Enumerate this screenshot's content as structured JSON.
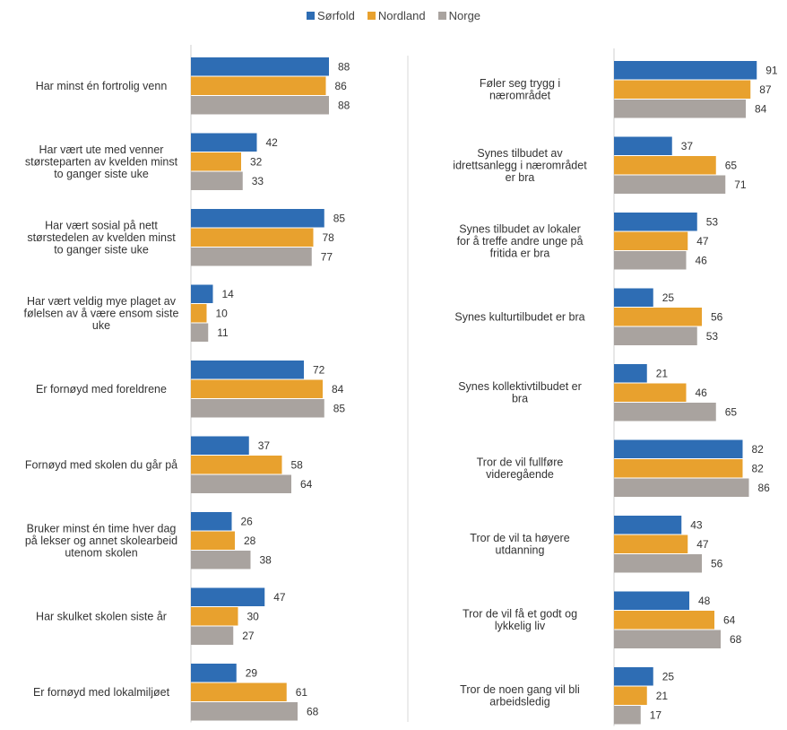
{
  "legend": {
    "items": [
      {
        "name": "Sørfold",
        "color": "#2e6db4"
      },
      {
        "name": "Nordland",
        "color": "#e8a12e"
      },
      {
        "name": "Norge",
        "color": "#a9a39f"
      }
    ]
  },
  "chart_data": [
    {
      "type": "bar",
      "orientation": "horizontal",
      "xlim": [
        0,
        100
      ],
      "series_names": [
        "Sørfold",
        "Nordland",
        "Norge"
      ],
      "categories": [
        {
          "label": "Har minst én fortrolig venn",
          "values": [
            88,
            86,
            88
          ]
        },
        {
          "label": "Har vært ute med venner størsteparten av kvelden minst to ganger siste uke",
          "values": [
            42,
            32,
            33
          ]
        },
        {
          "label": "Har vært sosial på nett størstedelen av kvelden minst to ganger siste uke",
          "values": [
            85,
            78,
            77
          ]
        },
        {
          "label": "Har vært veldig mye plaget av følelsen av å være ensom siste uke",
          "values": [
            14,
            10,
            11
          ]
        },
        {
          "label": "Er fornøyd med foreldrene",
          "values": [
            72,
            84,
            85
          ]
        },
        {
          "label": "Fornøyd med skolen du går på",
          "values": [
            37,
            58,
            64
          ]
        },
        {
          "label": "Bruker minst én time hver dag på lekser og annet skolearbeid utenom skolen",
          "values": [
            26,
            28,
            38
          ]
        },
        {
          "label": "Har skulket skolen siste år",
          "values": [
            47,
            30,
            27
          ]
        },
        {
          "label": "Er fornøyd med lokalmiljøet",
          "values": [
            29,
            61,
            68
          ]
        }
      ]
    },
    {
      "type": "bar",
      "orientation": "horizontal",
      "xlim": [
        0,
        100
      ],
      "series_names": [
        "Sørfold",
        "Nordland",
        "Norge"
      ],
      "categories": [
        {
          "label": "Føler seg trygg i nærområdet",
          "values": [
            91,
            87,
            84
          ]
        },
        {
          "label": "Synes tilbudet av idrettsanlegg i nærområdet er bra",
          "values": [
            37,
            65,
            71
          ]
        },
        {
          "label": "Synes tilbudet av lokaler for å treffe andre unge på fritida er bra",
          "values": [
            53,
            47,
            46
          ]
        },
        {
          "label": "Synes kulturtilbudet er bra",
          "values": [
            25,
            56,
            53
          ]
        },
        {
          "label": "Synes kollektivtilbudet er bra",
          "values": [
            21,
            46,
            65
          ]
        },
        {
          "label": "Tror de vil fullføre videregående",
          "values": [
            82,
            82,
            86
          ]
        },
        {
          "label": "Tror de vil ta høyere utdanning",
          "values": [
            43,
            47,
            56
          ]
        },
        {
          "label": "Tror de vil få et godt og lykkelig liv",
          "values": [
            48,
            64,
            68
          ]
        },
        {
          "label": "Tror de noen gang vil bli arbeidsledig",
          "values": [
            25,
            21,
            17
          ]
        }
      ]
    }
  ]
}
